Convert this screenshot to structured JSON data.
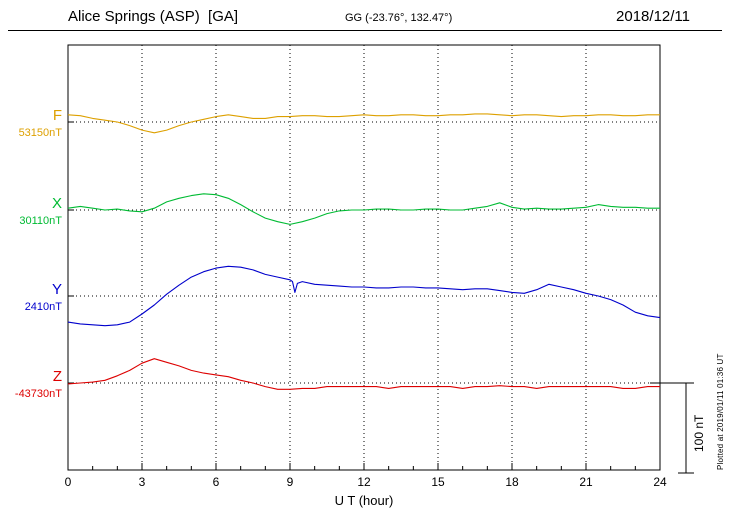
{
  "chart_data": {
    "type": "line",
    "title": "Alice Springs (ASP)  [GA]",
    "subtitle": "GG (-23.76°, 132.47°)",
    "date": "2018/12/11",
    "xlabel": "U T (hour)",
    "x_range": [
      0,
      24
    ],
    "x_ticks": [
      0,
      3,
      6,
      9,
      12,
      15,
      18,
      21,
      24
    ],
    "x_tick_labels": [
      "0",
      "3",
      "6",
      "9",
      "12",
      "15",
      "18",
      "21",
      "24"
    ],
    "grid": "dotted-vertical-every-3h",
    "legend_position": "left-of-traces",
    "scale_bar": {
      "label": "100 nT",
      "nT": 100
    },
    "plotted_note": "Plotted at 2019/01/11 01:36 UT",
    "series": [
      {
        "name": "F",
        "color": "#dda000",
        "base_label": "53150nT",
        "base_value_nT": 53150,
        "x_step_hours": 0.5,
        "offsets_nT": [
          8,
          7,
          4,
          2,
          0,
          -4,
          -9,
          -12,
          -9,
          -4,
          0,
          3,
          6,
          8,
          6,
          4,
          4,
          6,
          6,
          7,
          7,
          6,
          6,
          7,
          8,
          7,
          7,
          8,
          8,
          7,
          7,
          8,
          8,
          9,
          9,
          8,
          7,
          8,
          8,
          7,
          6,
          7,
          7,
          8,
          8,
          7,
          7,
          8,
          8
        ]
      },
      {
        "name": "X",
        "color": "#00bb33",
        "base_label": "30110nT",
        "base_value_nT": 30110,
        "x_step_hours": 0.5,
        "offsets_nT": [
          2,
          4,
          2,
          0,
          1,
          -1,
          -2,
          2,
          9,
          13,
          16,
          18,
          17,
          13,
          6,
          -2,
          -9,
          -13,
          -16,
          -13,
          -9,
          -4,
          -1,
          0,
          0,
          1,
          1,
          0,
          0,
          1,
          1,
          0,
          0,
          2,
          4,
          8,
          3,
          1,
          2,
          1,
          1,
          2,
          3,
          6,
          4,
          3,
          3,
          2,
          2
        ]
      },
      {
        "name": "Y",
        "color": "#0000cc",
        "base_label": "2410nT",
        "base_value_nT": 2410,
        "x": [
          0,
          0.5,
          1,
          1.5,
          2,
          2.5,
          3,
          3.5,
          4,
          4.5,
          5,
          5.5,
          6,
          6.5,
          7,
          7.5,
          8,
          8.5,
          9,
          9.1,
          9.2,
          9.3,
          9.5,
          10,
          10.5,
          11,
          11.5,
          12,
          12.5,
          13,
          13.5,
          14,
          14.5,
          15,
          15.5,
          16,
          16.5,
          17,
          17.5,
          18,
          18.5,
          19,
          19.5,
          20,
          20.5,
          21,
          21.5,
          22,
          22.5,
          23,
          23.5,
          24
        ],
        "offsets_nT": [
          -29,
          -31,
          -32,
          -33,
          -32,
          -29,
          -20,
          -10,
          2,
          12,
          21,
          27,
          31,
          33,
          32,
          29,
          24,
          21,
          18,
          16,
          4,
          14,
          16,
          13,
          12,
          11,
          10,
          10,
          9,
          9,
          10,
          10,
          9,
          9,
          8,
          7,
          8,
          8,
          6,
          4,
          3,
          7,
          13,
          10,
          7,
          3,
          0,
          -4,
          -10,
          -18,
          -22,
          -24
        ]
      },
      {
        "name": "Z",
        "color": "#dd0000",
        "base_label": "-43730nT",
        "base_value_nT": -43730,
        "x_step_hours": 0.5,
        "offsets_nT": [
          -1,
          0,
          1,
          3,
          8,
          14,
          22,
          27,
          23,
          19,
          14,
          11,
          9,
          7,
          3,
          0,
          -4,
          -7,
          -7,
          -6,
          -6,
          -4,
          -4,
          -4,
          -4,
          -4,
          -6,
          -4,
          -4,
          -4,
          -4,
          -4,
          -6,
          -4,
          -4,
          -3,
          -4,
          -4,
          -6,
          -4,
          -4,
          -4,
          -4,
          -4,
          -4,
          -6,
          -6,
          -4,
          -4
        ]
      }
    ]
  }
}
